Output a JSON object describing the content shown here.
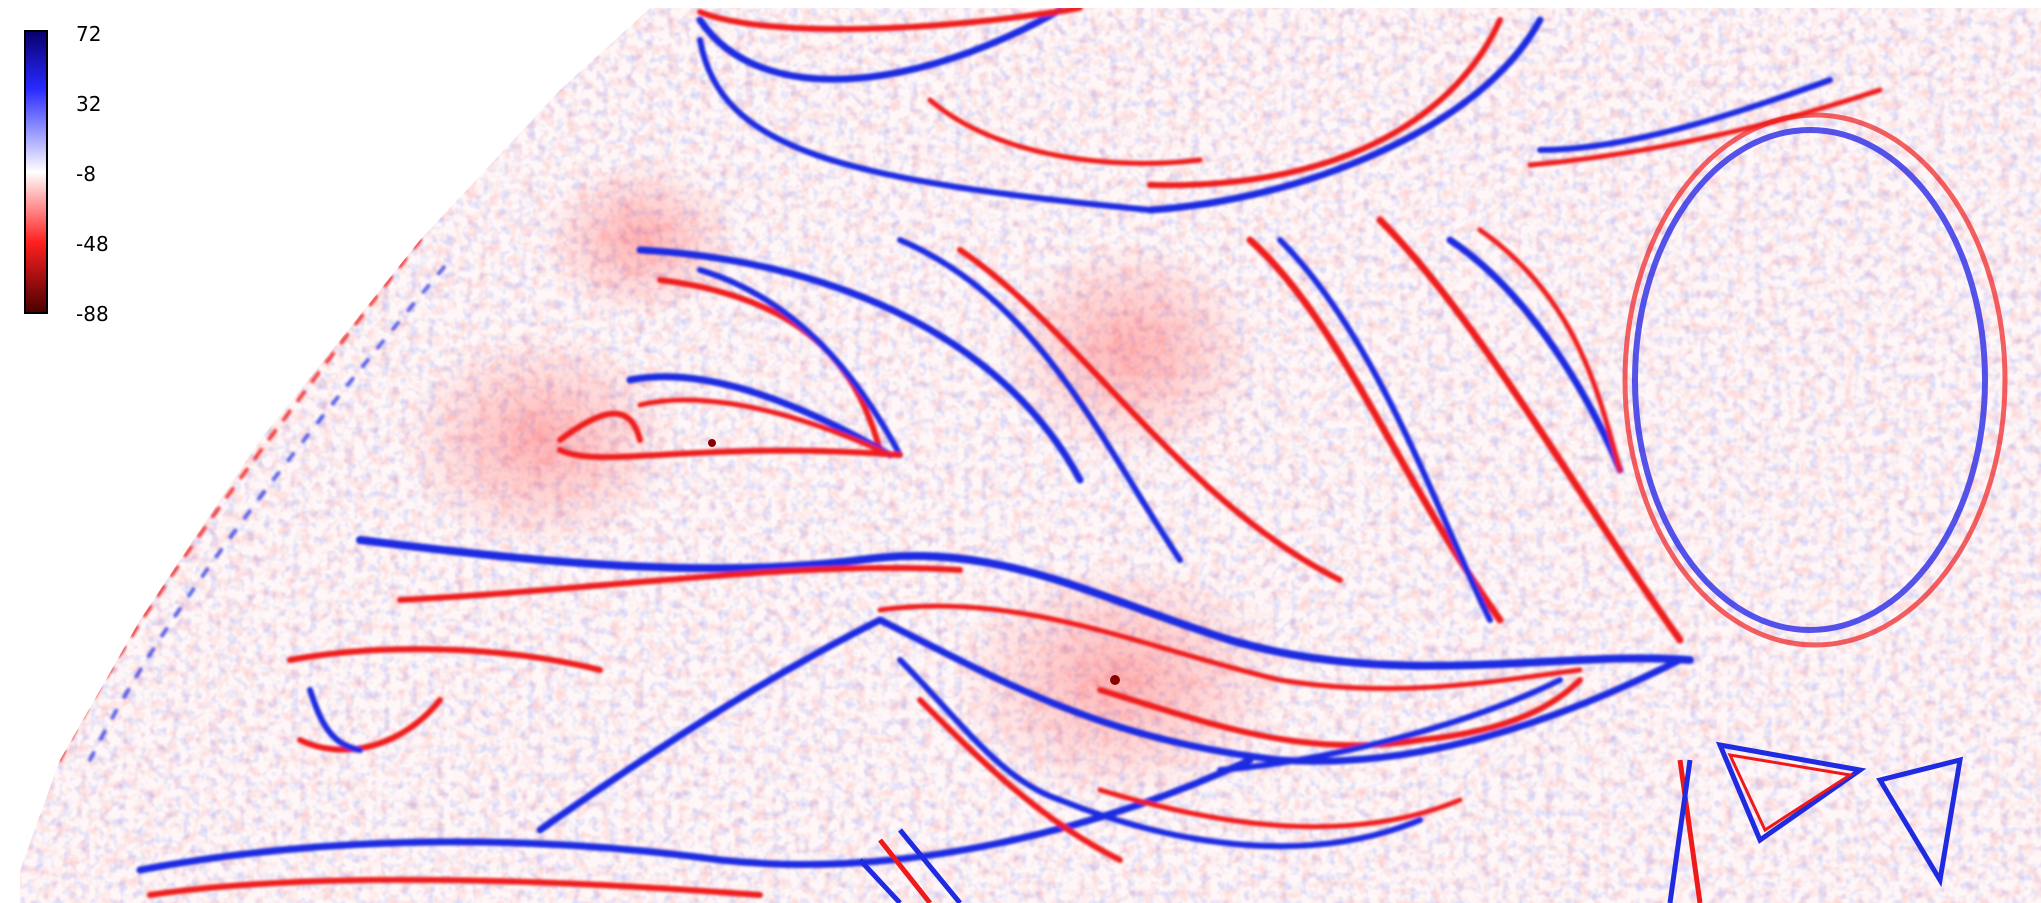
{
  "colorbar": {
    "ticks": [
      "72",
      "32",
      "-8",
      "-48",
      "-88"
    ],
    "max": 72,
    "min": -88,
    "colors": {
      "top": "#08006e",
      "upper": "#2828ff",
      "mid": "#ffffff",
      "lower": "#ff2020",
      "bottom": "#4a0000"
    }
  },
  "field_colors": {
    "positive": "#1f2be0",
    "negative": "#ee1a1a",
    "background": "#ffffff"
  }
}
